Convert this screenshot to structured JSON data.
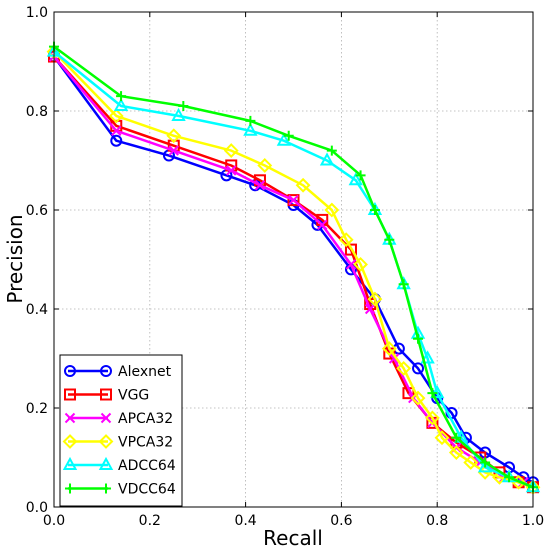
{
  "chart_data": {
    "type": "line",
    "xlabel": "Recall",
    "ylabel": "Precision",
    "xlim": [
      0,
      1
    ],
    "ylim": [
      0,
      1
    ],
    "x_ticks": [
      "0.0",
      "0.2",
      "0.4",
      "0.6",
      "0.8",
      "1.0"
    ],
    "y_ticks": [
      "0.0",
      "0.2",
      "0.4",
      "0.6",
      "0.8",
      "1.0"
    ],
    "grid": true,
    "legend_position": "lower-left",
    "series": [
      {
        "name": "Alexnet",
        "color": "#0000ff",
        "marker": "circle",
        "x": [
          0.0,
          0.13,
          0.24,
          0.36,
          0.42,
          0.5,
          0.55,
          0.62,
          0.67,
          0.72,
          0.76,
          0.8,
          0.83,
          0.86,
          0.9,
          0.95,
          0.98,
          1.0
        ],
        "y": [
          0.91,
          0.74,
          0.71,
          0.67,
          0.65,
          0.61,
          0.57,
          0.48,
          0.42,
          0.32,
          0.28,
          0.22,
          0.19,
          0.14,
          0.11,
          0.08,
          0.06,
          0.05
        ]
      },
      {
        "name": "VGG",
        "color": "#ff0000",
        "marker": "square",
        "x": [
          0.0,
          0.13,
          0.25,
          0.37,
          0.43,
          0.5,
          0.56,
          0.62,
          0.66,
          0.7,
          0.74,
          0.79,
          0.84,
          0.89,
          0.93,
          0.97,
          1.0
        ],
        "y": [
          0.91,
          0.77,
          0.73,
          0.69,
          0.66,
          0.62,
          0.58,
          0.52,
          0.41,
          0.31,
          0.23,
          0.17,
          0.13,
          0.1,
          0.07,
          0.05,
          0.04
        ]
      },
      {
        "name": "APCA32",
        "color": "#ff00ff",
        "marker": "x",
        "x": [
          0.0,
          0.13,
          0.25,
          0.37,
          0.43,
          0.5,
          0.56,
          0.62,
          0.66,
          0.71,
          0.75,
          0.79,
          0.84,
          0.89,
          0.94,
          0.98
        ],
        "y": [
          0.91,
          0.76,
          0.72,
          0.68,
          0.65,
          0.62,
          0.57,
          0.49,
          0.4,
          0.3,
          0.22,
          0.17,
          0.12,
          0.09,
          0.06,
          0.05
        ]
      },
      {
        "name": "VPCA32",
        "color": "#ffff00",
        "marker": "diamond",
        "x": [
          0.0,
          0.13,
          0.25,
          0.37,
          0.44,
          0.52,
          0.58,
          0.61,
          0.64,
          0.67,
          0.7,
          0.73,
          0.76,
          0.79,
          0.81,
          0.84,
          0.87,
          0.9,
          0.93,
          0.97,
          1.0
        ],
        "y": [
          0.92,
          0.79,
          0.75,
          0.72,
          0.69,
          0.65,
          0.6,
          0.54,
          0.49,
          0.42,
          0.32,
          0.28,
          0.22,
          0.18,
          0.14,
          0.11,
          0.09,
          0.07,
          0.06,
          0.05,
          0.04
        ]
      },
      {
        "name": "ADCC64",
        "color": "#00ffff",
        "marker": "triangle",
        "x": [
          0.0,
          0.14,
          0.26,
          0.41,
          0.48,
          0.57,
          0.63,
          0.67,
          0.7,
          0.73,
          0.76,
          0.78,
          0.8,
          0.85,
          0.9,
          0.95,
          1.0
        ],
        "y": [
          0.92,
          0.81,
          0.79,
          0.76,
          0.74,
          0.7,
          0.66,
          0.6,
          0.54,
          0.45,
          0.35,
          0.3,
          0.23,
          0.14,
          0.08,
          0.06,
          0.04
        ]
      },
      {
        "name": "VDCC64",
        "color": "#00ff00",
        "marker": "plus",
        "x": [
          0.0,
          0.14,
          0.27,
          0.41,
          0.49,
          0.58,
          0.64,
          0.67,
          0.7,
          0.73,
          0.76,
          0.79,
          0.84,
          0.9,
          0.95,
          1.0
        ],
        "y": [
          0.93,
          0.83,
          0.81,
          0.78,
          0.75,
          0.72,
          0.67,
          0.6,
          0.54,
          0.45,
          0.34,
          0.23,
          0.14,
          0.09,
          0.06,
          0.04
        ]
      }
    ]
  }
}
